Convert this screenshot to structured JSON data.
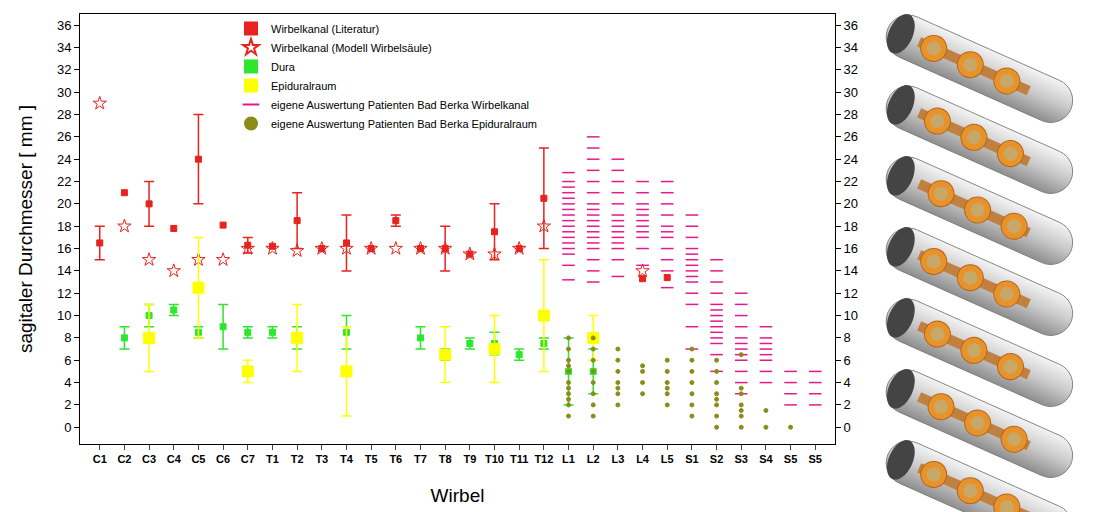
{
  "chart_data": {
    "type": "scatter",
    "x_label": "Wirbel",
    "y_label": "sagitaler Durchmesser [ mm ]",
    "categories": [
      "C1",
      "C2",
      "C3",
      "C4",
      "C5",
      "C6",
      "C7",
      "T1",
      "T2",
      "T3",
      "T4",
      "T5",
      "T6",
      "T7",
      "T8",
      "T9",
      "T10",
      "T11",
      "T12",
      "L1",
      "L2",
      "L3",
      "L4",
      "L5",
      "S1",
      "S2",
      "S3",
      "S4",
      "S5",
      "S5"
    ],
    "ylim": [
      -1.5,
      37
    ],
    "yticks": [
      0,
      2,
      4,
      6,
      8,
      10,
      12,
      14,
      16,
      18,
      20,
      22,
      24,
      26,
      28,
      30,
      32,
      34,
      36
    ],
    "grid": false,
    "legend": "top left",
    "series": [
      {
        "name": "Wirbelkanal (Literatur)",
        "color": "#e8231f",
        "marker": "square",
        "values": [
          16.5,
          21,
          20,
          17.8,
          24,
          18.1,
          16.3,
          16.2,
          18.5,
          16,
          16.5,
          16,
          18.5,
          16,
          16,
          15.5,
          17.5,
          16,
          20.5,
          null,
          null,
          null,
          13.3,
          13.4,
          null,
          null,
          null,
          null,
          null,
          null
        ],
        "error": [
          1.5,
          null,
          2,
          null,
          4,
          null,
          0.7,
          null,
          2.5,
          null,
          2.5,
          null,
          0.5,
          null,
          2,
          null,
          2.5,
          null,
          4.5,
          null,
          null,
          null,
          null,
          null,
          null,
          null,
          null,
          null,
          null,
          null
        ]
      },
      {
        "name": "Wirbelkanal (Modell Wirbelsäule)",
        "color": "#e8231f",
        "marker": "star-open",
        "values": [
          29,
          18,
          15,
          14,
          15,
          15,
          16,
          16,
          15.8,
          16,
          16,
          16,
          16,
          16,
          16,
          15.5,
          15.5,
          16,
          18,
          null,
          null,
          null,
          14,
          null,
          null,
          null,
          null,
          null,
          null,
          null
        ]
      },
      {
        "name": "Dura",
        "color": "#2ee62e",
        "marker": "square",
        "values": [
          null,
          8,
          10,
          10.5,
          8.5,
          9,
          8.5,
          8.5,
          8,
          null,
          8.5,
          null,
          null,
          8,
          6.5,
          7.5,
          7.5,
          6.5,
          7.5,
          5,
          5,
          null,
          null,
          null,
          null,
          null,
          null,
          null,
          null,
          null
        ],
        "error": [
          null,
          1,
          1,
          0.5,
          0.5,
          2,
          0.5,
          0.5,
          1,
          null,
          1.5,
          null,
          null,
          1,
          0.5,
          0.5,
          1,
          0.5,
          0.5,
          3,
          2,
          null,
          null,
          null,
          null,
          null,
          null,
          null,
          null,
          null
        ]
      },
      {
        "name": "Epiduralraum",
        "color": "#ffff00",
        "marker": "big-square",
        "values": [
          null,
          null,
          8,
          null,
          12.5,
          null,
          5,
          null,
          8,
          null,
          5,
          null,
          null,
          null,
          6.5,
          null,
          7,
          null,
          10,
          null,
          8,
          null,
          null,
          null,
          null,
          null,
          null,
          null,
          null,
          null
        ],
        "error": [
          null,
          null,
          3,
          null,
          4.5,
          null,
          1,
          null,
          3,
          null,
          4,
          null,
          null,
          null,
          2.5,
          null,
          3,
          null,
          5,
          null,
          2,
          null,
          null,
          null,
          null,
          null,
          null,
          null,
          null,
          null
        ]
      },
      {
        "name": "eigene Auswertung Patienten Bad Berka Wirbelkanal",
        "color": "#e6198c",
        "marker": "dash",
        "values": [
          null,
          null,
          null,
          null,
          null,
          null,
          null,
          null,
          null,
          null,
          null,
          null,
          null,
          null,
          null,
          null,
          null,
          null,
          null,
          [
            13.2,
            14.5,
            15.5,
            16,
            16.5,
            17,
            17.5,
            18,
            18.5,
            19,
            19.5,
            20,
            20.5,
            21,
            21.5,
            22,
            22.8
          ],
          [
            13,
            14,
            15,
            16,
            16.5,
            17,
            17.5,
            18,
            18.5,
            19,
            19.5,
            20,
            21,
            22,
            23,
            24,
            25,
            26
          ],
          [
            13.5,
            15,
            16,
            16.5,
            17,
            17.5,
            18,
            18.5,
            19,
            20,
            21,
            22,
            23,
            24
          ],
          [
            14.5,
            16,
            17,
            17.5,
            18,
            18.5,
            19,
            19.5,
            20,
            21,
            22
          ],
          [
            12.5,
            14,
            15,
            16,
            17,
            17.5,
            18,
            19,
            20,
            21,
            22
          ],
          [
            7,
            9,
            11,
            12,
            13,
            13.5,
            14,
            14.5,
            15,
            15.5,
            16,
            17,
            18,
            19
          ],
          [
            5,
            6.5,
            7.5,
            8,
            8.5,
            9,
            9.5,
            10,
            10.5,
            11,
            12,
            13,
            14,
            15
          ],
          [
            3,
            4,
            5,
            6,
            6.5,
            7,
            7.5,
            8,
            9,
            10,
            11,
            12
          ],
          [
            4,
            5,
            6,
            6.5,
            7,
            7.5,
            8,
            9
          ],
          [
            2,
            3,
            4,
            5
          ],
          [
            2,
            3,
            4,
            5
          ]
        ]
      },
      {
        "name": "eigene Auswertung Patienten Bad Berka Epiduralraum",
        "color": "#8b8b1a",
        "marker": "circle",
        "values": [
          null,
          null,
          null,
          null,
          null,
          null,
          null,
          null,
          null,
          null,
          null,
          null,
          null,
          null,
          null,
          null,
          null,
          null,
          null,
          [
            1,
            2,
            2.5,
            3,
            3.5,
            4,
            5,
            5.5,
            6,
            7,
            8
          ],
          [
            1,
            2,
            3,
            4,
            5,
            6,
            7,
            8
          ],
          [
            2,
            3,
            3.5,
            4,
            5,
            6,
            7
          ],
          [
            3,
            4,
            5,
            5.5
          ],
          [
            2,
            3,
            3.5,
            4,
            5,
            6
          ],
          [
            1,
            2,
            3,
            4,
            5,
            6,
            7
          ],
          [
            0,
            1,
            2,
            2.5,
            3,
            4,
            5,
            6
          ],
          [
            0,
            1,
            1.5,
            2,
            3,
            3.5,
            6.5
          ],
          [
            0,
            1.5
          ],
          [
            0
          ],
          null
        ]
      }
    ]
  }
}
